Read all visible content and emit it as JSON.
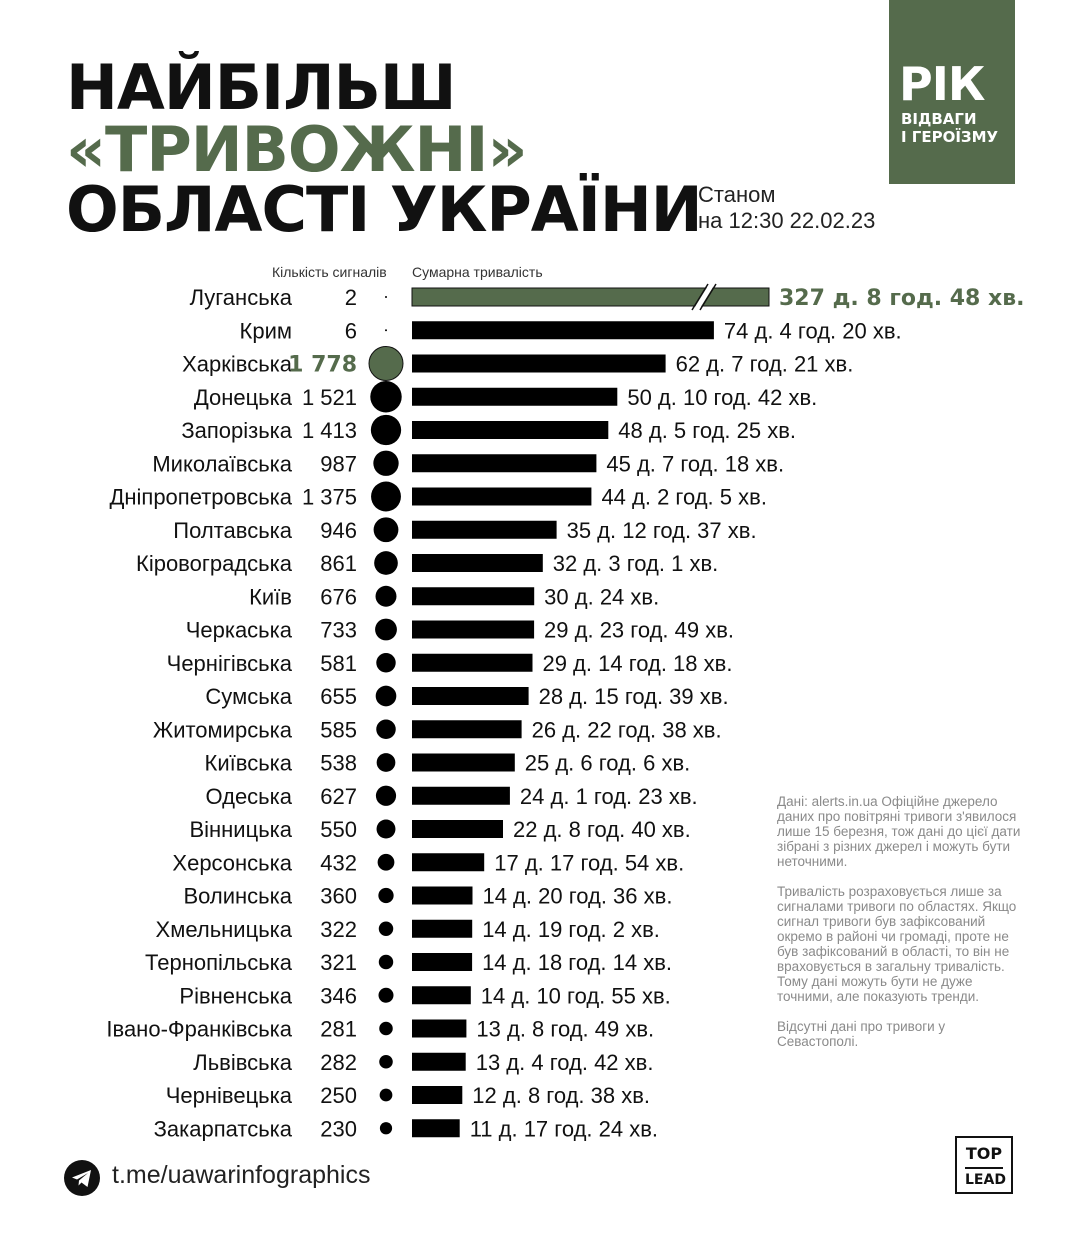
{
  "title": {
    "line1": "НАЙБІЛЬШ",
    "line2": "«ТРИВОЖНІ»",
    "line3": "ОБЛАСТІ УКРАЇНИ"
  },
  "as_of": {
    "line1": "Станом",
    "line2": "на 12:30 22.02.23"
  },
  "badge": {
    "big": "РІК",
    "line1": "ВІДВАГИ",
    "line2": "І ГЕРОЇЗМУ"
  },
  "colors": {
    "accent": "#556b4c",
    "bar": "#000000"
  },
  "chart_data": {
    "type": "bar",
    "columns": {
      "count": "Кількість сигналів",
      "duration": "Сумарна тривалість"
    },
    "rows": [
      {
        "region": "Луганська",
        "count": 2,
        "count_label": "2",
        "duration_days": 327.37,
        "duration_label": "327 д. 8 год. 48 хв.",
        "highlight": "duration",
        "broken_axis": true
      },
      {
        "region": "Крим",
        "count": 6,
        "count_label": "6",
        "duration_days": 74.18,
        "duration_label": "74 д. 4 год. 20 хв."
      },
      {
        "region": "Харківська",
        "count": 1778,
        "count_label": "1 778",
        "duration_days": 62.31,
        "duration_label": "62 д. 7 год. 21 хв.",
        "highlight": "count"
      },
      {
        "region": "Донецька",
        "count": 1521,
        "count_label": "1 521",
        "duration_days": 50.45,
        "duration_label": "50 д. 10 год. 42 хв."
      },
      {
        "region": "Запорізька",
        "count": 1413,
        "count_label": "1 413",
        "duration_days": 48.23,
        "duration_label": "48 д. 5 год. 25 хв."
      },
      {
        "region": "Миколаївська",
        "count": 987,
        "count_label": "987",
        "duration_days": 45.3,
        "duration_label": "45 д. 7 год. 18 хв."
      },
      {
        "region": "Дніпропетровська",
        "count": 1375,
        "count_label": "1 375",
        "duration_days": 44.09,
        "duration_label": "44 д. 2 год. 5 хв."
      },
      {
        "region": "Полтавська",
        "count": 946,
        "count_label": "946",
        "duration_days": 35.53,
        "duration_label": "35 д. 12 год. 37 хв."
      },
      {
        "region": "Кіровоградська",
        "count": 861,
        "count_label": "861",
        "duration_days": 32.13,
        "duration_label": "32 д. 3 год. 1 хв."
      },
      {
        "region": "Київ",
        "count": 676,
        "count_label": "676",
        "duration_days": 30.02,
        "duration_label": "30 д. 24 хв."
      },
      {
        "region": "Черкаська",
        "count": 733,
        "count_label": "733",
        "duration_days": 29.99,
        "duration_label": "29 д. 23 год. 49 хв."
      },
      {
        "region": "Чернігівська",
        "count": 581,
        "count_label": "581",
        "duration_days": 29.6,
        "duration_label": "29 д. 14 год. 18 хв."
      },
      {
        "region": "Сумська",
        "count": 655,
        "count_label": "655",
        "duration_days": 28.65,
        "duration_label": "28 д. 15 год. 39 хв."
      },
      {
        "region": "Житомирська",
        "count": 585,
        "count_label": "585",
        "duration_days": 26.94,
        "duration_label": "26 д. 22 год. 38 хв."
      },
      {
        "region": "Київська",
        "count": 538,
        "count_label": "538",
        "duration_days": 25.25,
        "duration_label": "25 д. 6 год. 6 хв."
      },
      {
        "region": "Одеська",
        "count": 627,
        "count_label": "627",
        "duration_days": 24.06,
        "duration_label": "24 д. 1 год. 23 хв."
      },
      {
        "region": "Вінницька",
        "count": 550,
        "count_label": "550",
        "duration_days": 22.36,
        "duration_label": "22 д. 8 год. 40 хв."
      },
      {
        "region": "Херсонська",
        "count": 432,
        "count_label": "432",
        "duration_days": 17.75,
        "duration_label": "17 д. 17 год. 54 хв."
      },
      {
        "region": "Волинська",
        "count": 360,
        "count_label": "360",
        "duration_days": 14.86,
        "duration_label": "14 д. 20 год. 36 хв."
      },
      {
        "region": "Хмельницька",
        "count": 322,
        "count_label": "322",
        "duration_days": 14.79,
        "duration_label": "14 д. 19 год. 2 хв."
      },
      {
        "region": "Тернопільська",
        "count": 321,
        "count_label": "321",
        "duration_days": 14.76,
        "duration_label": "14 д. 18 год. 14 хв."
      },
      {
        "region": "Рівненська",
        "count": 346,
        "count_label": "346",
        "duration_days": 14.45,
        "duration_label": "14 д. 10 год. 55 хв."
      },
      {
        "region": "Івано-Франківська",
        "count": 281,
        "count_label": "281",
        "duration_days": 13.37,
        "duration_label": "13 д. 8 год. 49 хв."
      },
      {
        "region": "Львівська",
        "count": 282,
        "count_label": "282",
        "duration_days": 13.2,
        "duration_label": "13 д. 4 год. 42 хв."
      },
      {
        "region": "Чернівецька",
        "count": 250,
        "count_label": "250",
        "duration_days": 12.36,
        "duration_label": "12 д. 8 год. 38 хв."
      },
      {
        "region": "Закарпатська",
        "count": 230,
        "count_label": "230",
        "duration_days": 11.72,
        "duration_label": "11 д. 17 год. 24 хв."
      }
    ]
  },
  "notes": [
    "Дані: alerts.in.ua Офіційне джерело даних про повітряні тривоги з'явилося лише 15 березня, тож дані до цієї дати зібрані з різних джерел і можуть бути неточними.",
    "Тривалість розраховується лише за сигналами тривоги по областях. Якщо сигнал тривоги був зафіксований окремо в районі чи громаді, проте не був зафіксований в області, то він не враховується в загальну тривалість. Тому дані можуть бути не дуже точними, але показують тренди.",
    "Відсутні дані про тривоги у Севастополі."
  ],
  "footer": {
    "link": "t.me/uawarinfographics"
  },
  "logo": {
    "line1": "TOP",
    "line2": "LEAD"
  }
}
